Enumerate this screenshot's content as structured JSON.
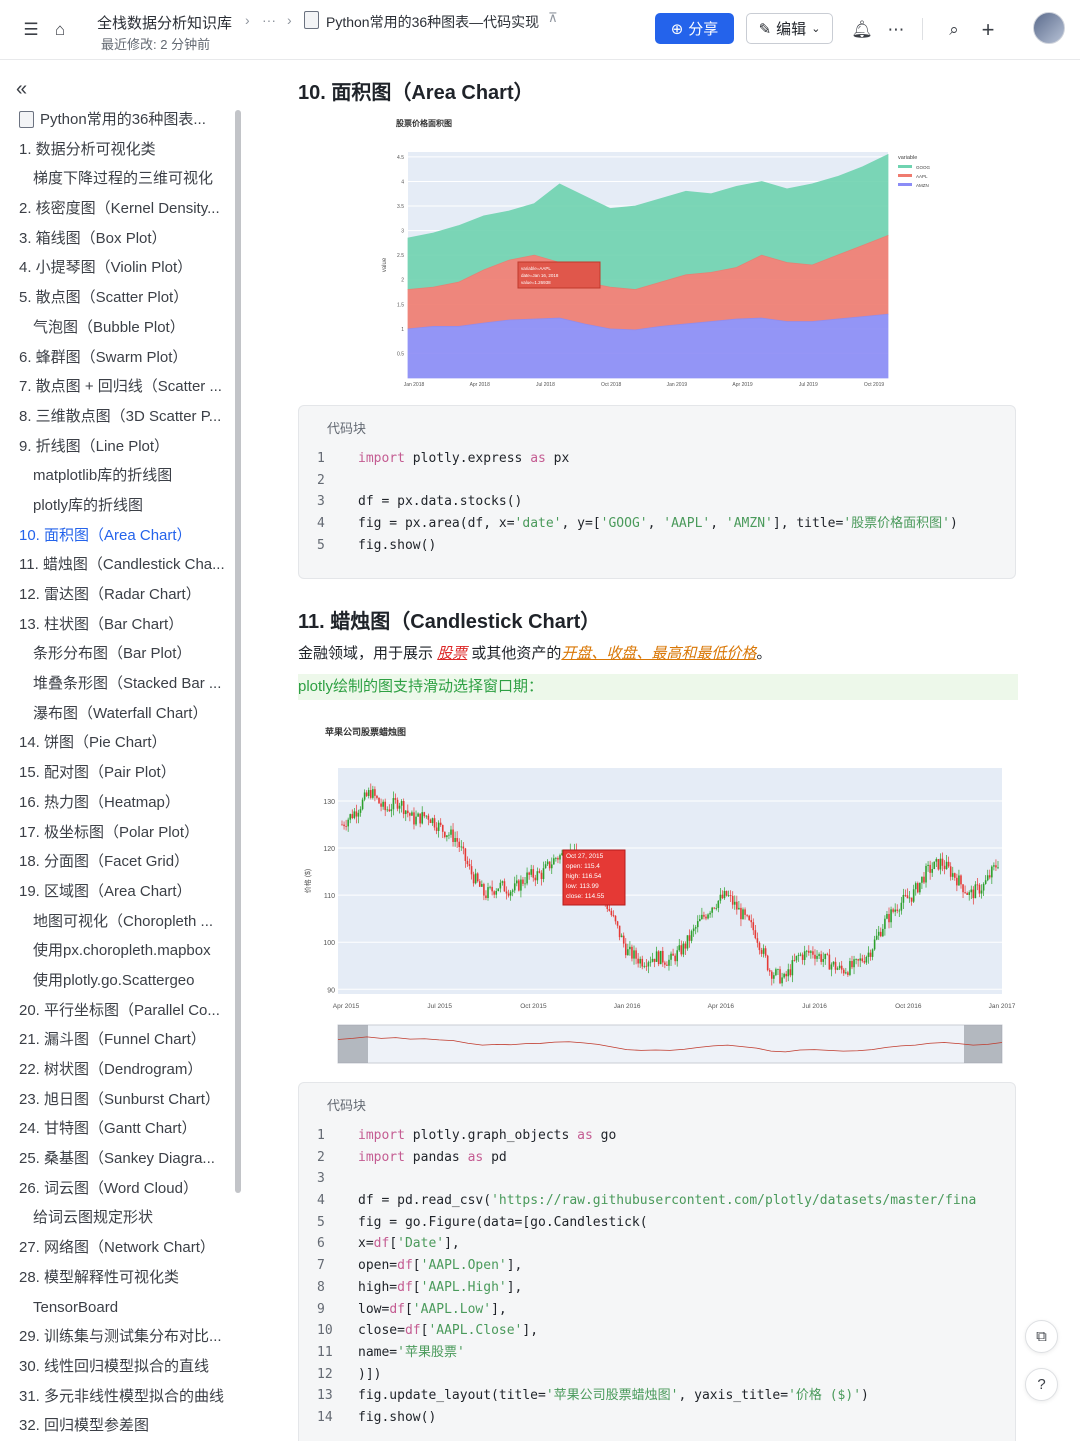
{
  "header": {
    "breadcrumb_root": "全栈数据分析知识库",
    "breadcrumb_more": "···",
    "last_modified": "最近修改: 2 分钟前",
    "doc_title": "Python常用的36种图表—代码实现",
    "share_label": "分享",
    "edit_label": "编辑"
  },
  "toc": {
    "root": "Python常用的36种图表...",
    "items": [
      {
        "label": "1. 数据分析可视化类",
        "level": 1
      },
      {
        "label": "梯度下降过程的三维可视化",
        "level": 2
      },
      {
        "label": "2. 核密度图（Kernel Density...",
        "level": 1
      },
      {
        "label": "3. 箱线图（Box Plot）",
        "level": 1
      },
      {
        "label": "4. 小提琴图（Violin Plot）",
        "level": 1
      },
      {
        "label": "5. 散点图（Scatter Plot）",
        "level": 1
      },
      {
        "label": "气泡图（Bubble Plot）",
        "level": 2
      },
      {
        "label": "6. 蜂群图（Swarm Plot）",
        "level": 1
      },
      {
        "label": "7. 散点图 + 回归线（Scatter ...",
        "level": 1
      },
      {
        "label": "8. 三维散点图（3D Scatter P...",
        "level": 1
      },
      {
        "label": "9. 折线图（Line Plot）",
        "level": 1
      },
      {
        "label": "matplotlib库的折线图",
        "level": 2
      },
      {
        "label": "plotly库的折线图",
        "level": 2
      },
      {
        "label": "10. 面积图（Area Chart）",
        "level": 1,
        "active": true
      },
      {
        "label": "11. 蜡烛图（Candlestick Cha...",
        "level": 1
      },
      {
        "label": "12. 雷达图（Radar Chart）",
        "level": 1
      },
      {
        "label": "13. 柱状图（Bar Chart）",
        "level": 1
      },
      {
        "label": "条形分布图（Bar Plot）",
        "level": 2
      },
      {
        "label": "堆叠条形图（Stacked Bar ...",
        "level": 2
      },
      {
        "label": "瀑布图（Waterfall Chart）",
        "level": 2
      },
      {
        "label": "14. 饼图（Pie Chart）",
        "level": 1
      },
      {
        "label": "15. 配对图（Pair Plot）",
        "level": 1
      },
      {
        "label": "16. 热力图（Heatmap）",
        "level": 1
      },
      {
        "label": "17. 极坐标图（Polar Plot）",
        "level": 1
      },
      {
        "label": "18. 分面图（Facet Grid）",
        "level": 1
      },
      {
        "label": "19. 区域图（Area Chart）",
        "level": 1
      },
      {
        "label": "地图可视化（Choropleth ...",
        "level": 2
      },
      {
        "label": "使用px.choropleth.mapbox",
        "level": 2
      },
      {
        "label": "使用plotly.go.Scattergeo",
        "level": 2
      },
      {
        "label": "20. 平行坐标图（Parallel Co...",
        "level": 1
      },
      {
        "label": "21. 漏斗图（Funnel Chart）",
        "level": 1
      },
      {
        "label": "22. 树状图（Dendrogram）",
        "level": 1
      },
      {
        "label": "23. 旭日图（Sunburst Chart）",
        "level": 1
      },
      {
        "label": "24. 甘特图（Gantt Chart）",
        "level": 1
      },
      {
        "label": "25. 桑基图（Sankey Diagra...",
        "level": 1
      },
      {
        "label": "26. 词云图（Word Cloud）",
        "level": 1
      },
      {
        "label": "给词云图规定形状",
        "level": 2
      },
      {
        "label": "27. 网络图（Network Chart）",
        "level": 1
      },
      {
        "label": "28. 模型解释性可视化类",
        "level": 1
      },
      {
        "label": "TensorBoard",
        "level": 2
      },
      {
        "label": "29. 训练集与测试集分布对比...",
        "level": 1
      },
      {
        "label": "30. 线性回归模型拟合的直线",
        "level": 1
      },
      {
        "label": "31. 多元非线性模型拟合的曲线",
        "level": 1
      },
      {
        "label": "32. 回归模型参差图",
        "level": 1
      }
    ]
  },
  "main": {
    "section10_title": "10. 面积图（Area Chart）",
    "code_label": "代码块",
    "code1": [
      "import plotly.express as px",
      "",
      "df = px.data.stocks()",
      "fig = px.area(df, x='date', y=['GOOG', 'AAPL', 'AMZN'], title='股票价格面积图')",
      "fig.show()"
    ],
    "section11_title": "11. 蜡烛图（Candlestick Chart）",
    "para_prefix": "金融领域，用于展示 ",
    "para_link1": "股票",
    "para_mid": " 或其他资产的",
    "para_link2": "开盘、收盘、最高和最低价格",
    "para_end": "。",
    "highlight": "plotly绘制的图支持滑动选择窗口期：",
    "code2": [
      "import plotly.graph_objects as go",
      "import pandas as pd",
      "",
      "df = pd.read_csv('https://raw.githubusercontent.com/plotly/datasets/master/fina",
      "fig = go.Figure(data=[go.Candlestick(",
      "    x=df['Date'],",
      "    open=df['AAPL.Open'],",
      "    high=df['AAPL.High'],",
      "    low=df['AAPL.Low'],",
      "    close=df['AAPL.Close'],",
      "    name='苹果股票'",
      ")])",
      "fig.update_layout(title='苹果公司股票蜡烛图', yaxis_title='价格 ($)')",
      "fig.show()"
    ]
  },
  "chart_data": [
    {
      "type": "area",
      "title": "股票价格面积图",
      "ylabel": "value",
      "legend_title": "variable",
      "legend_position": "right",
      "x": [
        "Jan 2018",
        "Apr 2018",
        "Jul 2018",
        "Oct 2018",
        "Jan 2019",
        "Apr 2019",
        "Jul 2019",
        "Oct 2019"
      ],
      "yticks": [
        "0.5",
        "1",
        "1.5",
        "2",
        "2.5",
        "3",
        "3.5",
        "4",
        "4.5"
      ],
      "ylim": [
        0,
        4.6
      ],
      "stacked": true,
      "series": [
        {
          "name": "GOOG",
          "color": "#6fd3b0",
          "cumulative": [
            2.85,
            2.95,
            3.1,
            3.3,
            3.4,
            3.55,
            3.95,
            3.7,
            3.45,
            3.5,
            3.65,
            3.8,
            3.75,
            3.9,
            4.0,
            3.85,
            3.95,
            4.1,
            4.3,
            4.55
          ]
        },
        {
          "name": "AAPL",
          "color": "#ef7b6f",
          "cumulative": [
            1.8,
            1.85,
            1.95,
            2.2,
            2.4,
            2.5,
            2.35,
            1.95,
            1.85,
            1.8,
            1.95,
            2.1,
            2.15,
            2.25,
            2.5,
            2.35,
            2.3,
            2.5,
            2.7,
            2.9
          ]
        },
        {
          "name": "AMZN",
          "color": "#8b8cf6",
          "cumulative": [
            1.0,
            1.05,
            1.05,
            1.12,
            1.18,
            1.2,
            1.22,
            1.1,
            1.0,
            0.98,
            1.05,
            1.1,
            1.15,
            1.2,
            1.22,
            1.15,
            1.15,
            1.2,
            1.25,
            1.3
          ]
        }
      ],
      "tooltip": [
        "variable=AAPL",
        "date=Jan 16, 2018",
        "value=1.26938"
      ]
    },
    {
      "type": "candlestick",
      "title": "苹果公司股票蜡烛图",
      "ylabel": "价格 ($)",
      "x": [
        "Apr 2015",
        "Jul 2015",
        "Oct 2015",
        "Jan 2016",
        "Apr 2016",
        "Jul 2016",
        "Oct 2016",
        "Jan 2017"
      ],
      "yticks": [
        "90",
        "100",
        "110",
        "120",
        "130"
      ],
      "ylim": [
        89,
        137
      ],
      "close_path": [
        125,
        128,
        132,
        128,
        130,
        126,
        127,
        124,
        122,
        115,
        110,
        112,
        111,
        114,
        114.5,
        118,
        119,
        116,
        112,
        105,
        98,
        96,
        97,
        96,
        99,
        104,
        108,
        110,
        106,
        102,
        94,
        92,
        97,
        98,
        96,
        94,
        95,
        98,
        104,
        108,
        110,
        115,
        117,
        114,
        110,
        112,
        117
      ],
      "tooltip": [
        "Oct 27, 2015",
        "open: 115.4",
        "high: 116.54",
        "low: 113.99",
        "close: 114.55"
      ],
      "range_slider": true
    }
  ]
}
